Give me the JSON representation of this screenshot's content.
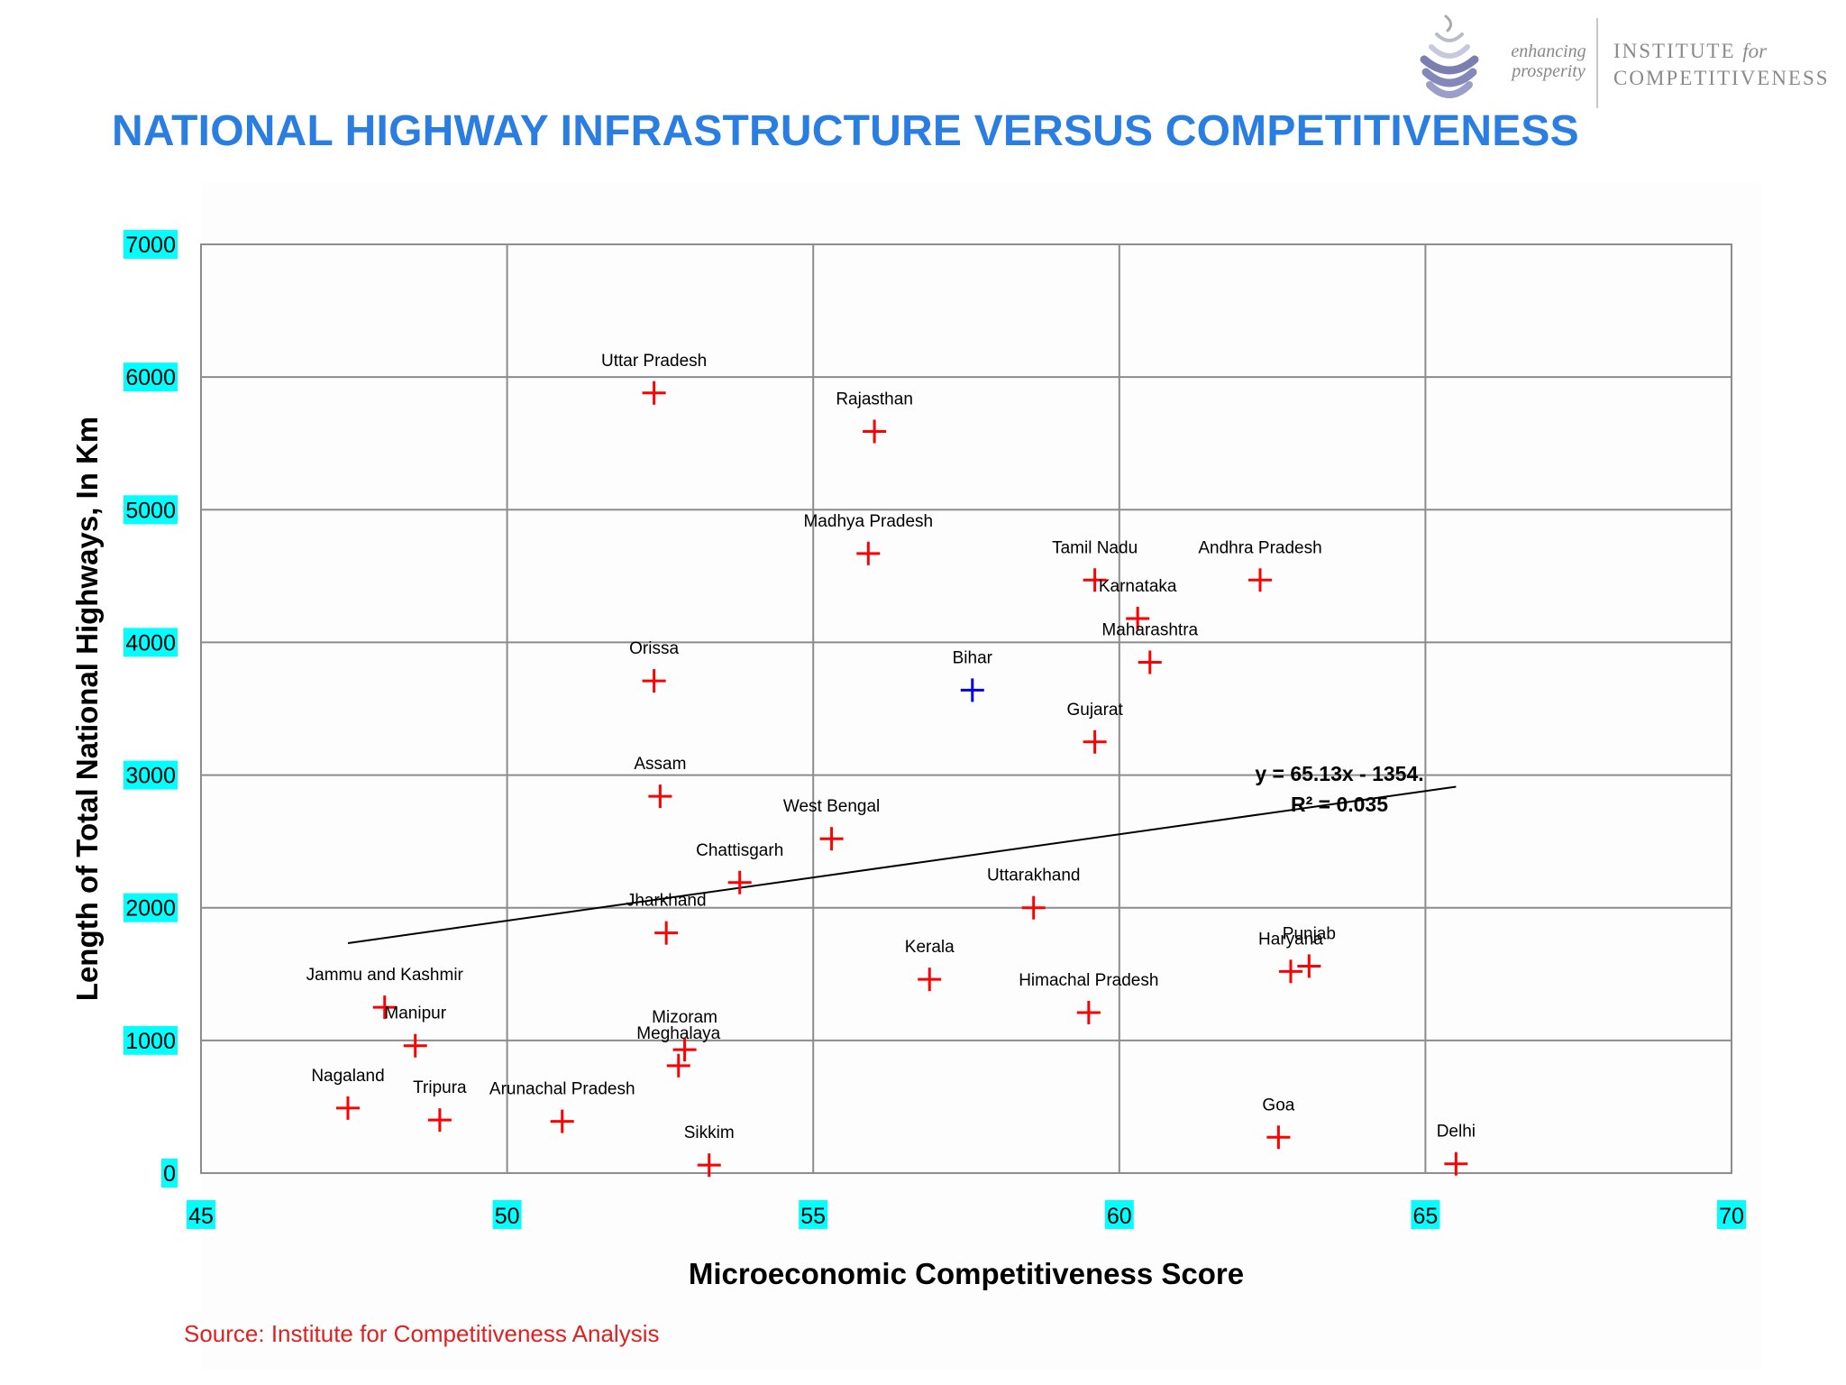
{
  "page": {
    "title": "NATIONAL HIGHWAY INFRASTRUCTURE VERSUS COMPETITIVENESS",
    "source": "Source: Institute for Competitiveness Analysis"
  },
  "logo": {
    "tagline_line1": "enhancing",
    "tagline_line2": "prosperity",
    "name_line1_a": "INSTITUTE ",
    "name_line1_b": "for",
    "name_line2": "COMPETITIVENESS"
  },
  "colors": {
    "title": "#2a7de1",
    "marker": "#ff0000",
    "highlight_marker": "#0000ee",
    "tick_label_bg": "#00ffff",
    "grid": "#8c8c8c",
    "source": "#e02020"
  },
  "chart_data": {
    "type": "scatter",
    "xlabel": "Microeconomic Competitiveness Score",
    "ylabel": "Length of Total National Highways, In Km",
    "xlim": [
      45,
      70
    ],
    "ylim": [
      0,
      7000
    ],
    "x_ticks": [
      45,
      50,
      55,
      60,
      65,
      70
    ],
    "y_ticks": [
      0,
      1000,
      2000,
      3000,
      4000,
      5000,
      6000,
      7000
    ],
    "grid": true,
    "marker": "plus",
    "points": [
      {
        "label": "Uttar Pradesh",
        "x": 52.4,
        "y": 5880
      },
      {
        "label": "Rajasthan",
        "x": 56.0,
        "y": 5590
      },
      {
        "label": "Madhya Pradesh",
        "x": 55.9,
        "y": 4670
      },
      {
        "label": "Tamil Nadu",
        "x": 59.6,
        "y": 4470
      },
      {
        "label": "Andhra Pradesh",
        "x": 62.3,
        "y": 4470
      },
      {
        "label": "Karnataka",
        "x": 60.3,
        "y": 4180
      },
      {
        "label": "Maharashtra",
        "x": 60.5,
        "y": 3850
      },
      {
        "label": "Orissa",
        "x": 52.4,
        "y": 3710
      },
      {
        "label": "Bihar",
        "x": 57.6,
        "y": 3640,
        "highlight": true
      },
      {
        "label": "Gujarat",
        "x": 59.6,
        "y": 3250
      },
      {
        "label": "Assam",
        "x": 52.5,
        "y": 2840
      },
      {
        "label": "West Bengal",
        "x": 55.3,
        "y": 2520
      },
      {
        "label": "Chattisgarh",
        "x": 53.8,
        "y": 2190
      },
      {
        "label": "Uttarakhand",
        "x": 58.6,
        "y": 2000
      },
      {
        "label": "Jharkhand",
        "x": 52.6,
        "y": 1810
      },
      {
        "label": "Punjab",
        "x": 63.1,
        "y": 1560
      },
      {
        "label": "Haryana",
        "x": 62.8,
        "y": 1520
      },
      {
        "label": "Kerala",
        "x": 56.9,
        "y": 1460
      },
      {
        "label": "Jammu and Kashmir",
        "x": 48.0,
        "y": 1250
      },
      {
        "label": "Himachal Pradesh",
        "x": 59.5,
        "y": 1210
      },
      {
        "label": "Manipur",
        "x": 48.5,
        "y": 960
      },
      {
        "label": "Mizoram",
        "x": 52.9,
        "y": 930
      },
      {
        "label": "Meghalaya",
        "x": 52.8,
        "y": 810
      },
      {
        "label": "Nagaland",
        "x": 47.4,
        "y": 490
      },
      {
        "label": "Tripura",
        "x": 48.9,
        "y": 400
      },
      {
        "label": "Arunachal Pradesh",
        "x": 50.9,
        "y": 390
      },
      {
        "label": "Goa",
        "x": 62.6,
        "y": 270
      },
      {
        "label": "Delhi",
        "x": 65.5,
        "y": 70
      },
      {
        "label": "Sikkim",
        "x": 53.3,
        "y": 60
      }
    ],
    "trendline": {
      "slope": 65.13,
      "intercept": -1354,
      "x_range": [
        47.4,
        65.5
      ],
      "equation": "y = 65.13x - 1354.",
      "r_squared": "R² = 0.035"
    }
  }
}
